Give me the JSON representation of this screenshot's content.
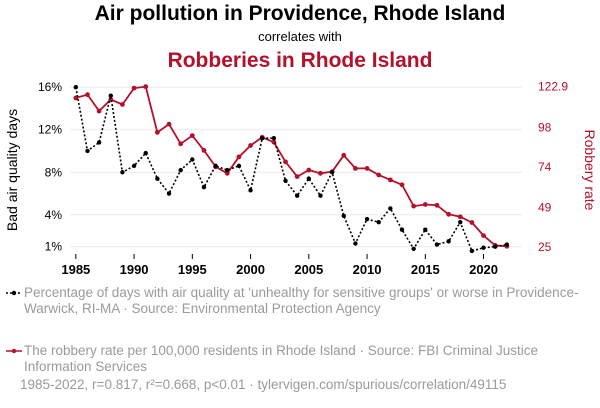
{
  "header": {
    "title": "Air pollution in Providence, Rhode Island",
    "subtitle": "correlates with",
    "title2": "Robberies in Rhode Island"
  },
  "legend": {
    "series1": "Percentage of days with air quality at 'unhealthy for sensitive groups' or worse in Providence-Warwick, RI-MA · Source: Environmental Protection Agency",
    "series2": "The robbery rate per 100,000 residents in Rhode Island · Source: FBI Criminal Justice Information Services"
  },
  "footer": "1985-2022, r=0.817, r²=0.668, p<0.01 · tylervigen.com/spurious/correlation/49115",
  "colors": {
    "series1": "#000000",
    "series2": "#b5112b"
  },
  "chart_data": {
    "type": "line",
    "x": [
      1985,
      1986,
      1987,
      1988,
      1989,
      1990,
      1991,
      1992,
      1993,
      1994,
      1995,
      1996,
      1997,
      1998,
      1999,
      2000,
      2001,
      2002,
      2003,
      2004,
      2005,
      2006,
      2007,
      2008,
      2009,
      2010,
      2011,
      2012,
      2013,
      2014,
      2015,
      2016,
      2017,
      2018,
      2019,
      2020,
      2021,
      2022
    ],
    "xticks": [
      1985,
      1990,
      1995,
      2000,
      2005,
      2010,
      2015,
      2020
    ],
    "y_left": {
      "label": "Bad air quality days",
      "range": [
        0.5,
        16.3
      ],
      "ticks": [
        1,
        4,
        8,
        12,
        16
      ],
      "tick_labels": [
        "1%",
        "4%",
        "8%",
        "12%",
        "16%"
      ]
    },
    "y_right": {
      "label": "Robbery rate",
      "range": [
        22,
        124.5
      ],
      "ticks": [
        25,
        49,
        74,
        98,
        122.9
      ],
      "tick_labels": [
        "25",
        "49",
        "74",
        "98",
        "122.9"
      ]
    },
    "series": [
      {
        "name": "Percentage of days with air quality at 'unhealthy for sensitive groups' or worse in Providence-Warwick, RI-MA",
        "axis": "left",
        "style": "dotted",
        "values": [
          16.0,
          10.0,
          10.8,
          15.2,
          8.0,
          8.6,
          9.8,
          7.4,
          6.0,
          8.2,
          9.2,
          6.6,
          8.6,
          8.2,
          8.6,
          6.3,
          11.2,
          11.2,
          7.2,
          5.8,
          7.4,
          5.8,
          8.0,
          3.9,
          1.3,
          3.6,
          3.3,
          4.6,
          2.6,
          0.8,
          2.6,
          1.2,
          1.5,
          3.3,
          0.6,
          0.9,
          1.0,
          1.2
        ]
      },
      {
        "name": "The robbery rate per 100,000 residents in Rhode Island",
        "axis": "right",
        "style": "solid",
        "values": [
          116.0,
          118.0,
          108.0,
          115.0,
          112.0,
          122.0,
          122.9,
          95.0,
          100.0,
          88.0,
          93.0,
          84.0,
          74.0,
          70.0,
          80.0,
          87.0,
          92.0,
          89.0,
          77.0,
          68.0,
          72.0,
          70.0,
          71.0,
          81.0,
          73.0,
          73.0,
          69.0,
          66.0,
          63.0,
          50.0,
          51.0,
          50.5,
          45.0,
          43.5,
          40.0,
          32.0,
          26.0,
          25.5
        ]
      }
    ]
  }
}
